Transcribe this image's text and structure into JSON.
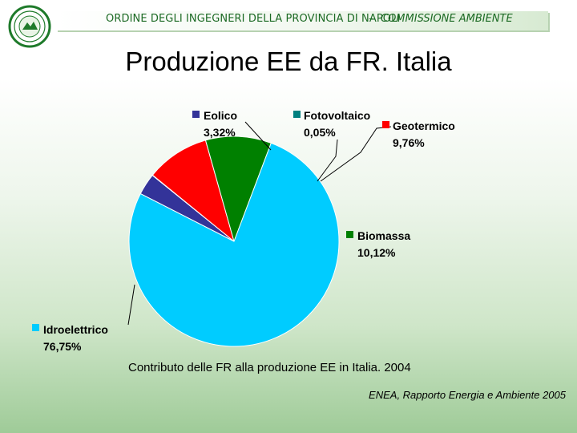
{
  "header": {
    "organization": "ORDINE DEGLI INGEGNERI DELLA PROVINCIA DI NAPOLI",
    "separator": "–",
    "commission": "COMMISSIONE AMBIENTE"
  },
  "page_title": "Produzione EE da FR. Italia",
  "chart_data": {
    "type": "pie",
    "title": "Contributo delle FR alla produzione EE in Italia. 2004",
    "slices": [
      {
        "label": "Eolico",
        "value": 3.32,
        "display": "3,32%",
        "color": "#333399"
      },
      {
        "label": "Fotovoltaico",
        "value": 0.05,
        "display": "0,05%",
        "color": "#008080"
      },
      {
        "label": "Geotermico",
        "value": 9.76,
        "display": "9,76%",
        "color": "#ff0000"
      },
      {
        "label": "Biomassa",
        "value": 10.12,
        "display": "10,12%",
        "color": "#008000"
      },
      {
        "label": "Idroelettrico",
        "value": 76.75,
        "display": "76,75%",
        "color": "#00ccff"
      }
    ],
    "legend_placement": "around-pie"
  },
  "source_note": "ENEA, Rapporto Energia e Ambiente 2005"
}
